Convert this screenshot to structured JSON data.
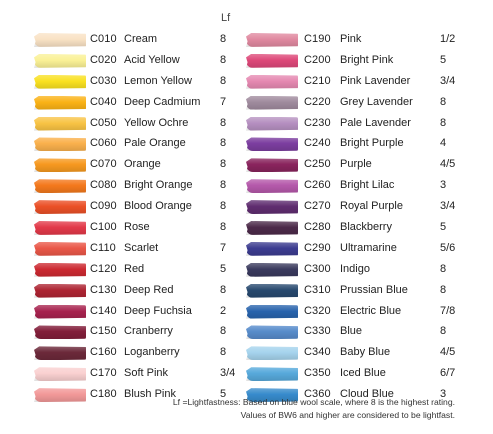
{
  "header": {
    "lf_label": "Lf"
  },
  "left_column": [
    {
      "code": "C010",
      "name": "Cream",
      "lf": "8",
      "color": "#f8e2c6"
    },
    {
      "code": "C020",
      "name": "Acid Yellow",
      "lf": "8",
      "color": "#f9f19a"
    },
    {
      "code": "C030",
      "name": "Lemon Yellow",
      "lf": "8",
      "color": "#f8e12a"
    },
    {
      "code": "C040",
      "name": "Deep Cadmium",
      "lf": "7",
      "color": "#f7b21d"
    },
    {
      "code": "C050",
      "name": "Yellow Ochre",
      "lf": "8",
      "color": "#f6c34a"
    },
    {
      "code": "C060",
      "name": "Pale Orange",
      "lf": "8",
      "color": "#f7b152"
    },
    {
      "code": "C070",
      "name": "Orange",
      "lf": "8",
      "color": "#f39a26"
    },
    {
      "code": "C080",
      "name": "Bright Orange",
      "lf": "8",
      "color": "#ef7a22"
    },
    {
      "code": "C090",
      "name": "Blood Orange",
      "lf": "8",
      "color": "#e5512a"
    },
    {
      "code": "C100",
      "name": "Rose",
      "lf": "8",
      "color": "#dc3b4a"
    },
    {
      "code": "C110",
      "name": "Scarlet",
      "lf": "7",
      "color": "#e4584a"
    },
    {
      "code": "C120",
      "name": "Red",
      "lf": "5",
      "color": "#c62b32"
    },
    {
      "code": "C130",
      "name": "Deep Red",
      "lf": "8",
      "color": "#a82533"
    },
    {
      "code": "C140",
      "name": "Deep Fuchsia",
      "lf": "2",
      "color": "#a2234d"
    },
    {
      "code": "C150",
      "name": "Cranberry",
      "lf": "8",
      "color": "#7f1f3a"
    },
    {
      "code": "C160",
      "name": "Loganberry",
      "lf": "8",
      "color": "#6a2a3a"
    },
    {
      "code": "C170",
      "name": "Soft Pink",
      "lf": "3/4",
      "color": "#f8d0d0"
    },
    {
      "code": "C180",
      "name": "Blush Pink",
      "lf": "5",
      "color": "#ef9a9a"
    }
  ],
  "right_column": [
    {
      "code": "C190",
      "name": "Pink",
      "lf": "1/2",
      "color": "#dd8aa0"
    },
    {
      "code": "C200",
      "name": "Bright Pink",
      "lf": "5",
      "color": "#d84a78"
    },
    {
      "code": "C210",
      "name": "Pink Lavender",
      "lf": "3/4",
      "color": "#e28ab0"
    },
    {
      "code": "C220",
      "name": "Grey Lavender",
      "lf": "8",
      "color": "#9e8a9c"
    },
    {
      "code": "C230",
      "name": "Pale Lavender",
      "lf": "8",
      "color": "#b490be"
    },
    {
      "code": "C240",
      "name": "Bright Purple",
      "lf": "4",
      "color": "#7a3f9c"
    },
    {
      "code": "C250",
      "name": "Purple",
      "lf": "4/5",
      "color": "#86255c"
    },
    {
      "code": "C260",
      "name": "Bright Lilac",
      "lf": "3",
      "color": "#b25aa8"
    },
    {
      "code": "C270",
      "name": "Royal Purple",
      "lf": "3/4",
      "color": "#5e2e6e"
    },
    {
      "code": "C280",
      "name": "Blackberry",
      "lf": "5",
      "color": "#4b2a48"
    },
    {
      "code": "C290",
      "name": "Ultramarine",
      "lf": "5/6",
      "color": "#3c3c8c"
    },
    {
      "code": "C300",
      "name": "Indigo",
      "lf": "8",
      "color": "#3a3a5c"
    },
    {
      "code": "C310",
      "name": "Prussian Blue",
      "lf": "8",
      "color": "#28486c"
    },
    {
      "code": "C320",
      "name": "Electric Blue",
      "lf": "7/8",
      "color": "#2a63a8"
    },
    {
      "code": "C330",
      "name": "Blue",
      "lf": "8",
      "color": "#5a8cc8"
    },
    {
      "code": "C340",
      "name": "Baby Blue",
      "lf": "4/5",
      "color": "#a8d4ec"
    },
    {
      "code": "C350",
      "name": "Iced Blue",
      "lf": "6/7",
      "color": "#5aa8d8"
    },
    {
      "code": "C360",
      "name": "Cloud Blue",
      "lf": "3",
      "color": "#3a8ac8"
    }
  ],
  "footnote": {
    "line1": "Lf =Lightfastness: Based on blue wool scale, where 8 is the highest rating.",
    "line2": "Values of BW6 and higher are considered to be lightfast."
  }
}
